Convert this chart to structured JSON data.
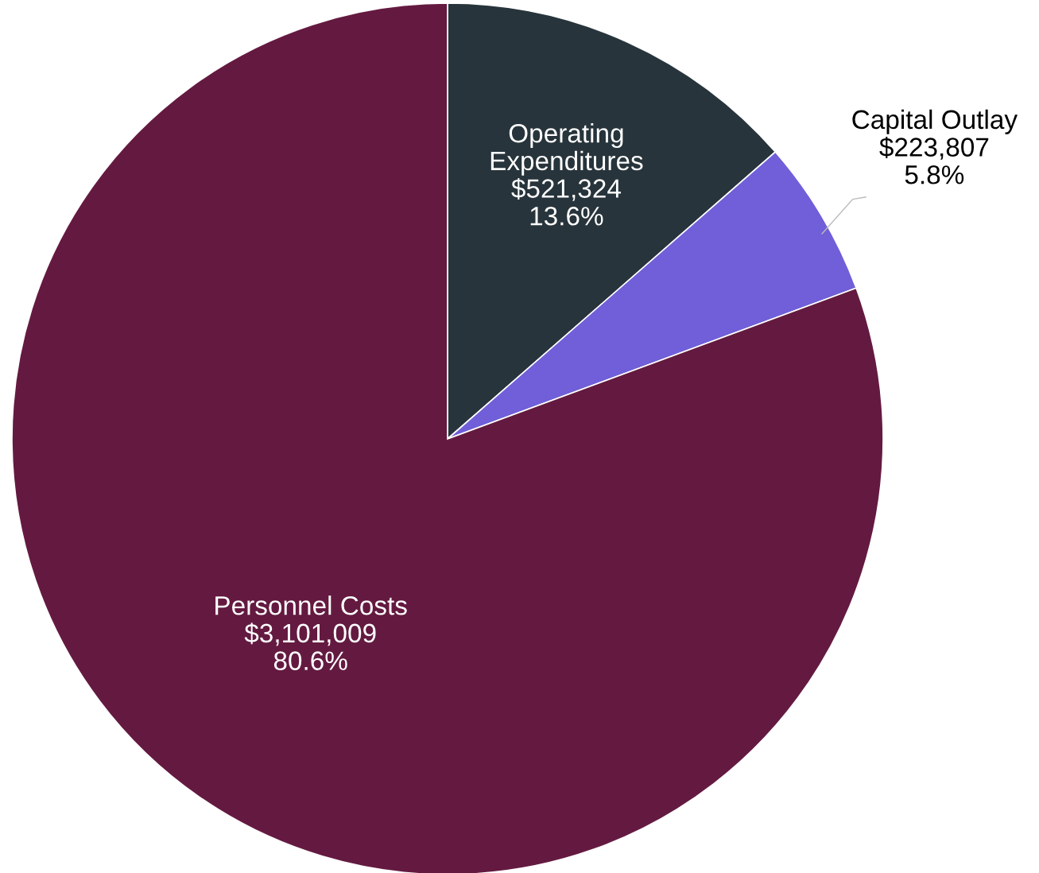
{
  "chart_data": {
    "type": "pie",
    "categories": [
      "Operating Expenditures",
      "Capital Outlay",
      "Personnel Costs"
    ],
    "values": [
      521324,
      223807,
      3101009
    ],
    "value_labels": [
      "$521,324\n13.6%",
      "$223,807\n5.8%",
      "$3,101,009\n80.6%"
    ],
    "colors": [
      "#27343b",
      "#705fd8",
      "#641a40"
    ],
    "legend": false
  }
}
